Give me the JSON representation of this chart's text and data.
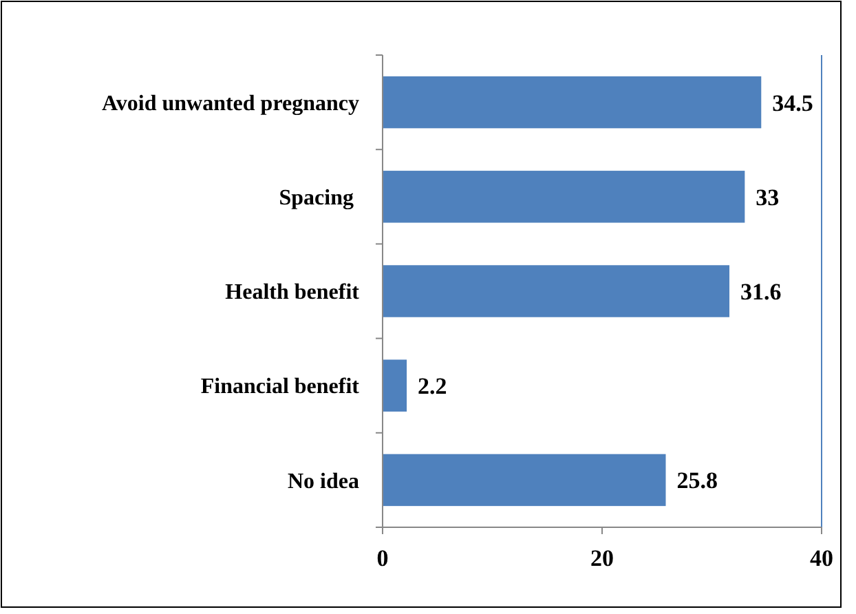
{
  "chart_data": {
    "type": "bar",
    "orientation": "horizontal",
    "categories": [
      "Avoid unwanted pregnancy",
      "Spacing ",
      "Health benefit",
      "Financial benefit",
      "No idea"
    ],
    "values": [
      34.5,
      33,
      31.6,
      2.2,
      25.8
    ],
    "color": "#4f81bd",
    "xlim": [
      0,
      40
    ],
    "xticks": [
      0,
      20,
      40
    ],
    "data_labels": true
  }
}
